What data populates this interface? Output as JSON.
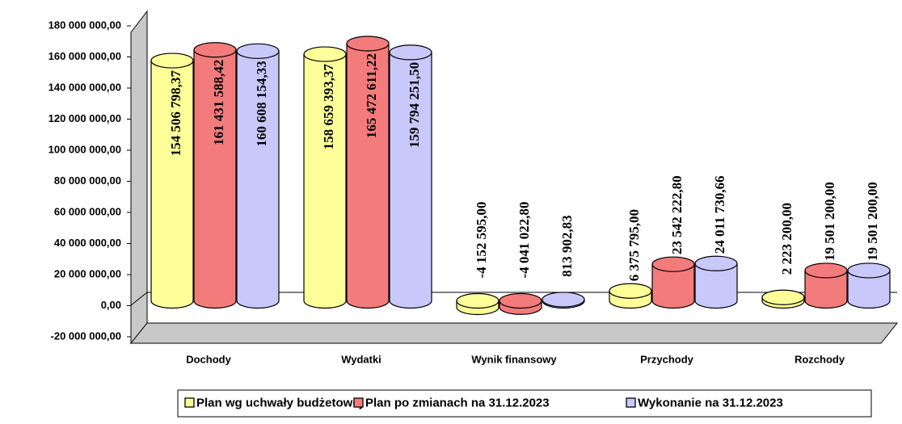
{
  "chart_data": {
    "type": "bar3d",
    "categories": [
      "Dochody",
      "Wydatki",
      "Wynik finansowy",
      "Przychody",
      "Rozchody"
    ],
    "series": [
      {
        "name": "Plan wg uchwały budżetowej",
        "color": "#ffff99",
        "values": [
          154506798.37,
          158659393.37,
          -4152595.0,
          6375795.0,
          2223200.0
        ],
        "value_labels": [
          "154 506 798,37",
          "158 659 393,37",
          "-4 152 595,00",
          "6 375 795,00",
          "2 223 200,00"
        ]
      },
      {
        "name": "Plan po zmianach na 31.12.2023",
        "color": "#f47b7b",
        "values": [
          161431588.42,
          165472611.22,
          -4041022.8,
          23542222.8,
          19501200.0
        ],
        "value_labels": [
          "161 431 588,42",
          "165 472 611,22",
          "-4 041 022,80",
          "23 542 222,80",
          "19 501 200,00"
        ]
      },
      {
        "name": "Wykonanie na 31.12.2023",
        "color": "#c8c8fa",
        "values": [
          160608154.33,
          159794251.5,
          813902.83,
          24011730.66,
          19501200.0
        ],
        "value_labels": [
          "160 608 154,33",
          "159 794 251,50",
          "813 902,83",
          "24 011 730,66",
          "19 501 200,00"
        ]
      }
    ],
    "ylim": [
      -20000000,
      180000000
    ],
    "yticks": [
      {
        "value": -20000000,
        "label": "-20 000 000,00"
      },
      {
        "value": 0,
        "label": "0,00"
      },
      {
        "value": 20000000,
        "label": "20 000 000,00"
      },
      {
        "value": 40000000,
        "label": "40 000 000,00"
      },
      {
        "value": 60000000,
        "label": "60 000 000,00"
      },
      {
        "value": 80000000,
        "label": "80 000 000,00"
      },
      {
        "value": 100000000,
        "label": "100 000 000,00"
      },
      {
        "value": 120000000,
        "label": "120 000 000,00"
      },
      {
        "value": 140000000,
        "label": "140 000 000,00"
      },
      {
        "value": 160000000,
        "label": "160 000 000,00"
      },
      {
        "value": 180000000,
        "label": "180 000 000,00"
      }
    ],
    "grid": false,
    "legend": "bottom"
  }
}
